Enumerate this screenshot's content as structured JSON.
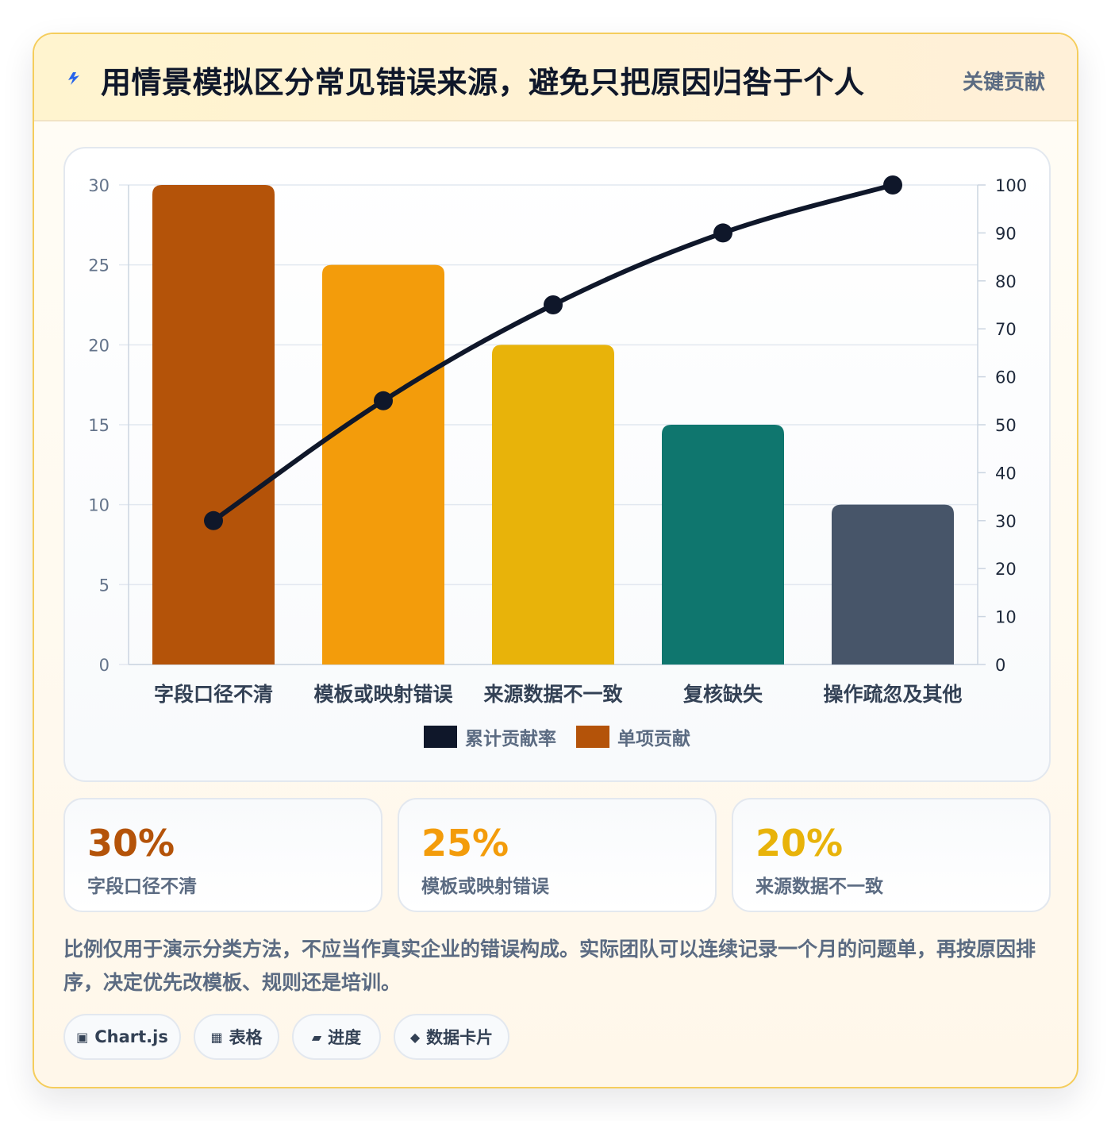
{
  "header": {
    "title": "用情景模拟区分常见错误来源，避免只把原因归咎于个人",
    "tag": "关键贡献",
    "icon": "lightning-icon"
  },
  "chart_data": {
    "type": "bar",
    "categories": [
      "字段口径不清",
      "模板或映射错误",
      "来源数据不一致",
      "复核缺失",
      "操作疏忽及其他"
    ],
    "series": [
      {
        "name": "单项贡献",
        "type": "bar",
        "axis": "left",
        "values": [
          30,
          25,
          20,
          15,
          10
        ],
        "colors": [
          "#b45309",
          "#f39c0b",
          "#e8b30a",
          "#0f766e",
          "#475569"
        ]
      },
      {
        "name": "累计贡献率",
        "type": "line",
        "axis": "right",
        "values": [
          30,
          55,
          75,
          90,
          100
        ],
        "color": "#0f172a"
      }
    ],
    "y_left": {
      "min": 0,
      "max": 30,
      "ticks": [
        0,
        5,
        10,
        15,
        20,
        25,
        30
      ]
    },
    "y_right": {
      "min": 0,
      "max": 100,
      "ticks": [
        0,
        10,
        20,
        30,
        40,
        50,
        60,
        70,
        80,
        90,
        100
      ]
    },
    "legend": {
      "position": "bottom",
      "entries": [
        {
          "label": "累计贡献率",
          "color": "#0f172a"
        },
        {
          "label": "单项贡献",
          "color": "#b45309"
        }
      ]
    },
    "grid": true
  },
  "stats": [
    {
      "value": "30%",
      "label": "字段口径不清",
      "color": "#b45309"
    },
    {
      "value": "25%",
      "label": "模板或映射错误",
      "color": "#f39c0b"
    },
    {
      "value": "20%",
      "label": "来源数据不一致",
      "color": "#e8b30a"
    }
  ],
  "note": "比例仅用于演示分类方法，不应当作真实企业的错误构成。实际团队可以连续记录一个月的问题单，再按原因排序，决定优先改模板、规则还是培训。",
  "chips": [
    {
      "icon": "▣",
      "icon_name": "chart-icon",
      "label": "Chart.js"
    },
    {
      "icon": "▦",
      "icon_name": "table-icon",
      "label": "表格"
    },
    {
      "icon": "▰",
      "icon_name": "progress-icon",
      "label": "进度"
    },
    {
      "icon": "◆",
      "icon_name": "card-icon",
      "label": "数据卡片"
    }
  ]
}
